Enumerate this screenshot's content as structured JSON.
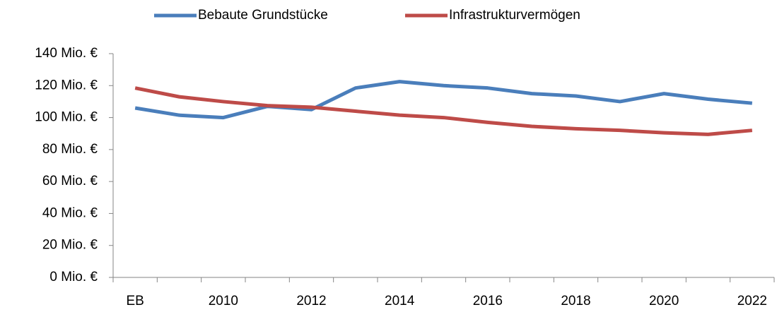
{
  "chart_data": {
    "type": "line",
    "categories": [
      "EB",
      null,
      "2010",
      null,
      "2012",
      null,
      "2014",
      null,
      "2016",
      null,
      "2018",
      null,
      "2020",
      null,
      "2022"
    ],
    "series": [
      {
        "name": "Bebaute Grundstücke",
        "color": "#4a7ebb",
        "values": [
          106,
          101.5,
          100,
          107,
          105,
          118.5,
          122.5,
          120,
          118.5,
          115,
          113.5,
          110,
          115,
          111.5,
          109
        ]
      },
      {
        "name": "Infrastrukturvermögen",
        "color": "#be4b48",
        "values": [
          118.5,
          113,
          110,
          107.5,
          106.5,
          104,
          101.5,
          100,
          97,
          94.5,
          93,
          92,
          90.5,
          89.5,
          92
        ]
      }
    ],
    "ylim": [
      0,
      140
    ],
    "yticks": [
      {
        "value": 0,
        "label": "0 Mio. €"
      },
      {
        "value": 20,
        "label": "20 Mio. €"
      },
      {
        "value": 40,
        "label": "40 Mio. €"
      },
      {
        "value": 60,
        "label": "60 Mio. €"
      },
      {
        "value": 80,
        "label": "80 Mio. €"
      },
      {
        "value": 100,
        "label": "100 Mio. €"
      },
      {
        "value": 120,
        "label": "120 Mio. €"
      },
      {
        "value": 140,
        "label": "140 Mio. €"
      }
    ],
    "legend": "top"
  }
}
